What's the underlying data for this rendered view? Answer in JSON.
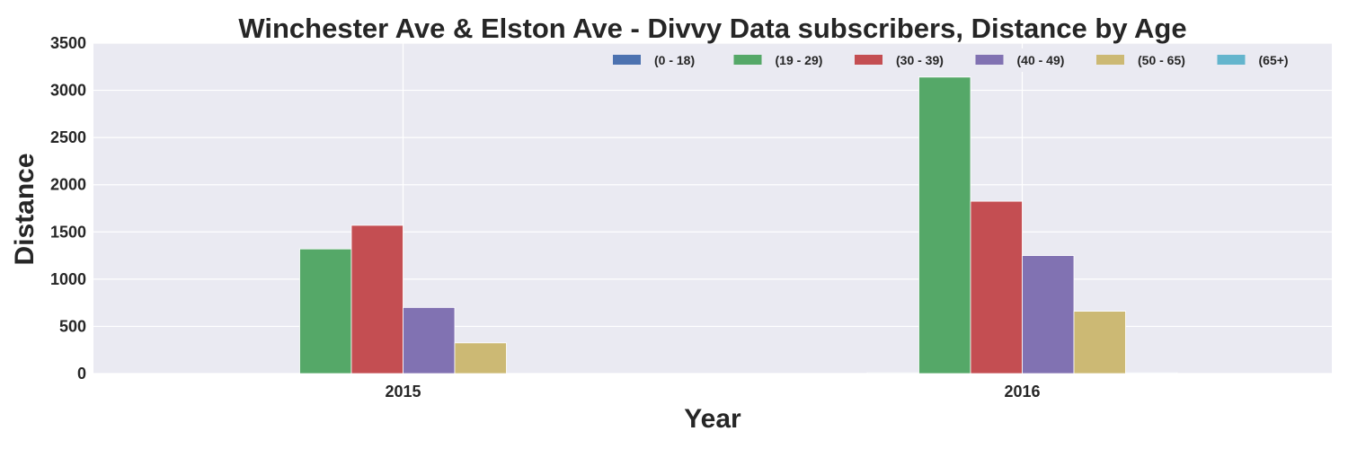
{
  "chart_data": {
    "type": "bar",
    "title": "Winchester Ave & Elston Ave - Divvy Data subscribers, Distance by Age",
    "xlabel": "Year",
    "ylabel": "Distance",
    "categories": [
      "2015",
      "2016"
    ],
    "ylim": [
      0,
      3500
    ],
    "yticks": [
      0,
      500,
      1000,
      1500,
      2000,
      2500,
      3000,
      3500
    ],
    "grid": true,
    "legend_position": "top-right",
    "series": [
      {
        "name": "(0 - 18)",
        "color": "#4c72b0",
        "values": [
          0,
          8
        ]
      },
      {
        "name": "(19 - 29)",
        "color": "#55a868",
        "values": [
          1320,
          3140
        ]
      },
      {
        "name": "(30 - 39)",
        "color": "#c44e52",
        "values": [
          1570,
          1825
        ]
      },
      {
        "name": "(40 - 49)",
        "color": "#8172b2",
        "values": [
          700,
          1250
        ]
      },
      {
        "name": "(50 - 65)",
        "color": "#ccb974",
        "values": [
          325,
          660
        ]
      },
      {
        "name": "(65+)",
        "color": "#64b5cd",
        "values": [
          0,
          8
        ]
      }
    ]
  },
  "colors": {
    "plot_background": "#eaeaf2",
    "grid": "#ffffff",
    "text": "#262626"
  }
}
